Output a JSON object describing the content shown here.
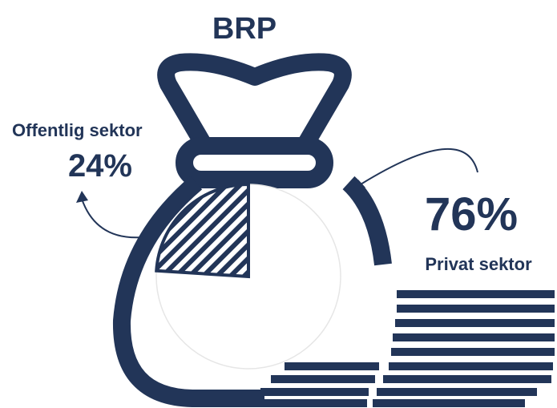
{
  "chart_data": {
    "type": "pie",
    "title": "BRP",
    "categories": [
      "Offentlig sektor",
      "Privat sektor"
    ],
    "values": [
      24,
      76
    ],
    "value_labels": [
      "24%",
      "76%"
    ],
    "color": "#223558"
  }
}
